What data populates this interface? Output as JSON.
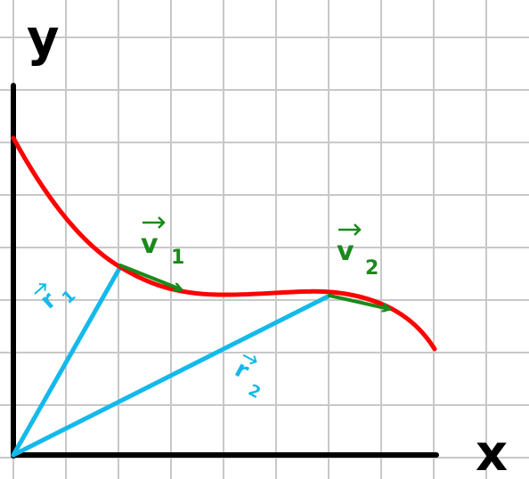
{
  "axes": {
    "x_label": "x",
    "y_label": "y"
  },
  "vectors": {
    "r1": {
      "letter": "r",
      "subscript": "1"
    },
    "r2": {
      "letter": "r",
      "subscript": "2"
    },
    "v1": {
      "letter": "v",
      "subscript": "1"
    },
    "v2": {
      "letter": "v",
      "subscript": "2"
    }
  },
  "colors": {
    "grid": "#c8c8c8",
    "axes": "#000000",
    "curve": "#ff0000",
    "position_vector": "#14b9eb",
    "velocity_vector": "#1a8a1a"
  }
}
